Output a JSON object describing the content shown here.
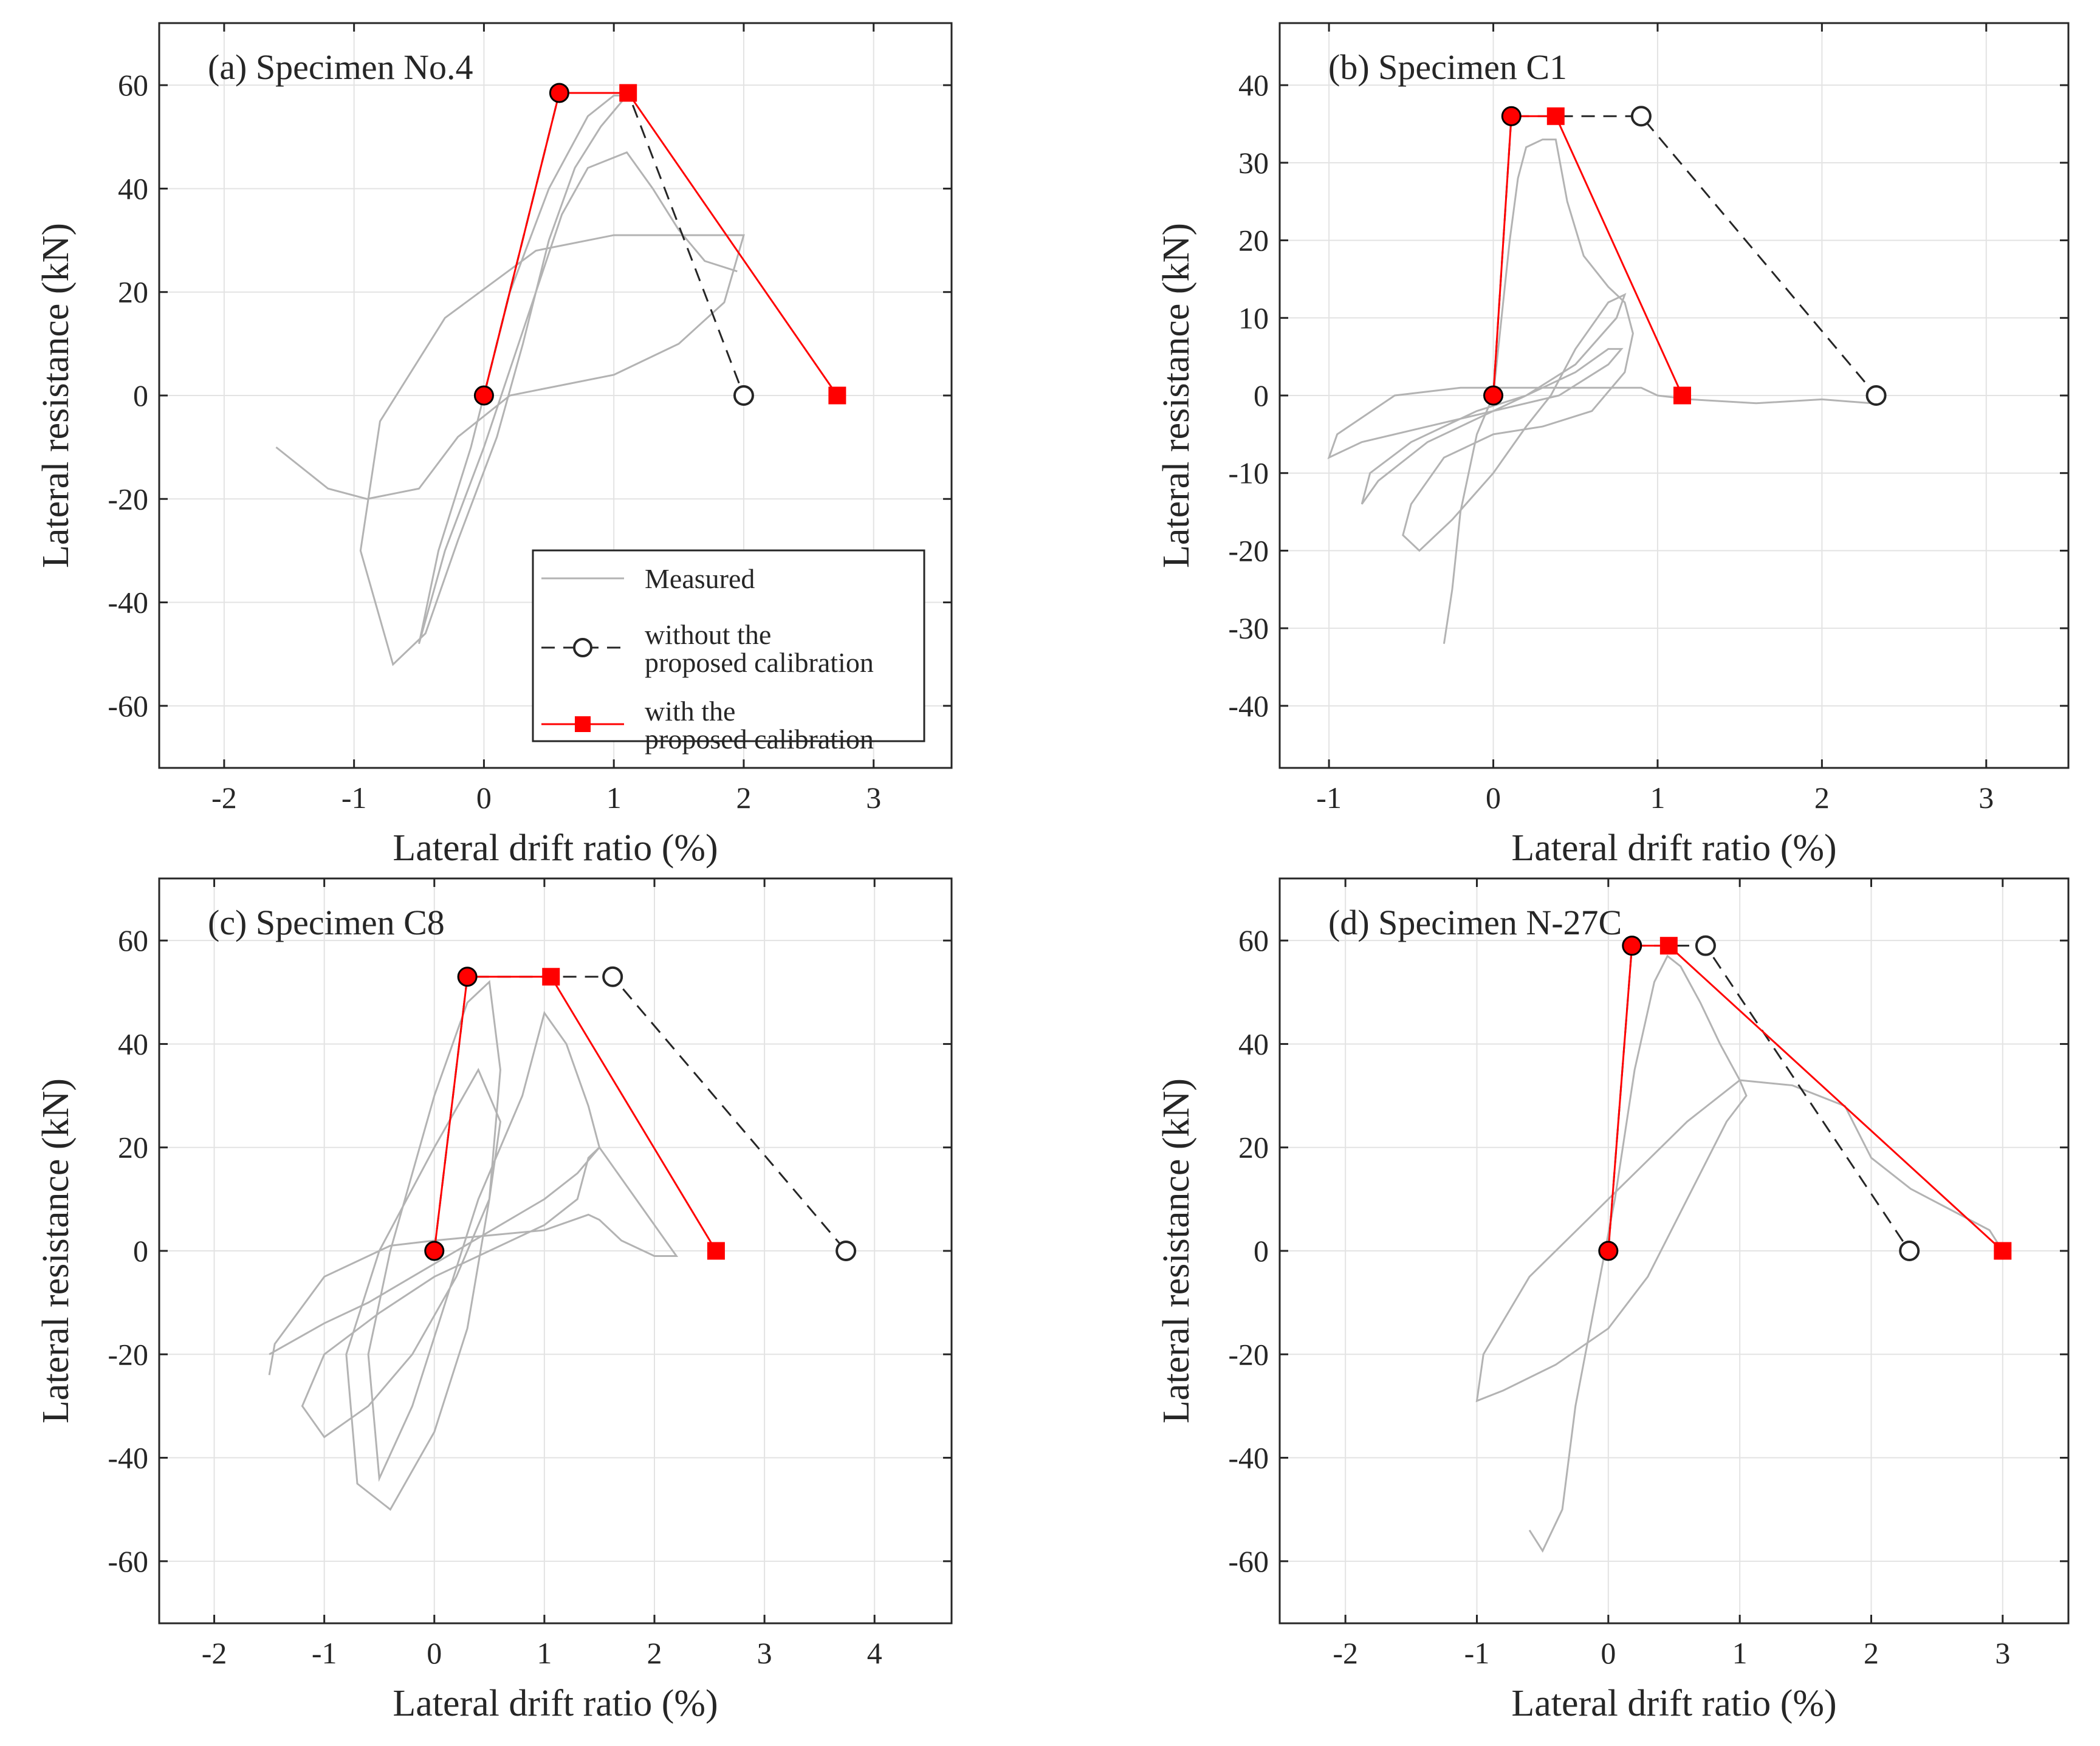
{
  "figure": {
    "legend": {
      "entries": [
        {
          "label_lines": [
            "Measured"
          ],
          "kind": "measured"
        },
        {
          "label_lines": [
            "without the",
            "proposed calibration"
          ],
          "kind": "without"
        },
        {
          "label_lines": [
            "with the",
            "proposed calibration"
          ],
          "kind": "with"
        }
      ]
    },
    "colors": {
      "measured": "#b3b3b3",
      "without": "#262626",
      "with": "#ff0000",
      "grid": "#e3e3e3",
      "axis": "#262626"
    }
  },
  "chart_data": [
    {
      "type": "line",
      "panel_label": "(a) Specimen No.4",
      "xlabel": "Lateral drift ratio (%)",
      "ylabel": "Lateral resistance (kN)",
      "xlim": [
        -2.5,
        3.6
      ],
      "ylim": [
        -72,
        72
      ],
      "xticks": [
        -2,
        -1,
        0,
        1,
        2,
        3
      ],
      "yticks": [
        -60,
        -40,
        -20,
        0,
        20,
        40,
        60
      ],
      "grid": true,
      "legend_position": "bottom-right",
      "series": [
        {
          "name": "Measured",
          "x": [
            -1.6,
            -1.2,
            -0.9,
            -0.5,
            -0.2,
            0.2,
            0.6,
            1.0,
            1.5,
            1.85,
            2.0,
            1.7,
            1.0,
            0.4,
            -0.3,
            -0.8,
            -0.95,
            -0.7,
            -0.45,
            -0.2,
            0.1,
            0.3,
            0.5,
            0.7,
            0.9,
            1.1,
            1.0,
            0.8,
            0.5,
            0.2,
            -0.1,
            -0.35,
            -0.5,
            -0.3,
            0.0,
            0.2,
            0.4,
            0.6,
            0.8,
            1.1,
            1.3,
            1.5,
            1.7,
            1.95
          ],
          "y": [
            -10,
            -18,
            -20,
            -18,
            -8,
            0,
            2,
            4,
            10,
            18,
            31,
            31,
            31,
            28,
            15,
            -5,
            -30,
            -52,
            -46,
            -28,
            -8,
            10,
            30,
            44,
            52,
            58,
            58,
            54,
            40,
            20,
            -10,
            -30,
            -48,
            -30,
            -10,
            5,
            20,
            35,
            44,
            47,
            40,
            32,
            26,
            24
          ]
        },
        {
          "name": "without the proposed calibration",
          "x": [
            0,
            0.58,
            1.11,
            2.0
          ],
          "y": [
            0,
            58.5,
            58.5,
            0
          ]
        },
        {
          "name": "with the proposed calibration",
          "x": [
            0,
            0.58,
            1.11,
            2.72
          ],
          "y": [
            0,
            58.5,
            58.5,
            0
          ]
        }
      ]
    },
    {
      "type": "line",
      "panel_label": "(b) Specimen C1",
      "xlabel": "Lateral drift ratio (%)",
      "ylabel": "Lateral resistance (kN)",
      "xlim": [
        -1.3,
        3.5
      ],
      "ylim": [
        -48,
        48
      ],
      "xticks": [
        -1,
        0,
        1,
        2,
        3
      ],
      "yticks": [
        -40,
        -30,
        -20,
        -10,
        0,
        10,
        20,
        30,
        40
      ],
      "grid": true,
      "legend_position": "none",
      "series": [
        {
          "name": "Measured",
          "x": [
            -0.3,
            -0.25,
            -0.2,
            -0.1,
            0.0,
            0.05,
            0.1,
            0.15,
            0.2,
            0.3,
            0.38,
            0.45,
            0.55,
            0.7,
            0.8,
            0.85,
            0.8,
            0.6,
            0.3,
            0.0,
            -0.3,
            -0.5,
            -0.55,
            -0.45,
            -0.25,
            0.0,
            0.2,
            0.35,
            0.5,
            0.7,
            0.8,
            0.75,
            0.5,
            0.2,
            -0.1,
            -0.4,
            -0.7,
            -0.8,
            -0.75,
            -0.5,
            -0.1,
            0.2,
            0.5,
            0.7,
            0.78,
            0.7,
            0.4,
            0.0,
            -0.4,
            -0.8,
            -1.0,
            -0.95,
            -0.6,
            -0.2,
            0.2,
            0.6,
            0.9,
            1.0,
            1.2,
            1.6,
            2.0,
            2.3
          ],
          "y": [
            -32,
            -25,
            -15,
            -5,
            0,
            10,
            20,
            28,
            32,
            33,
            33,
            25,
            18,
            14,
            12,
            8,
            3,
            -2,
            -4,
            -5,
            -8,
            -14,
            -18,
            -20,
            -16,
            -10,
            -4,
            0,
            6,
            12,
            13,
            10,
            4,
            0,
            -3,
            -6,
            -11,
            -14,
            -10,
            -6,
            -2,
            0,
            3,
            6,
            6,
            4,
            0,
            -2,
            -4,
            -6,
            -8,
            -5,
            0,
            1,
            1,
            1,
            1,
            0,
            -0.5,
            -1,
            -0.5,
            -1
          ]
        },
        {
          "name": "without the proposed calibration",
          "x": [
            0,
            0.11,
            0.38,
            0.9,
            2.33
          ],
          "y": [
            0,
            36,
            36,
            36,
            0
          ]
        },
        {
          "name": "with the proposed calibration",
          "x": [
            0,
            0.11,
            0.38,
            1.15
          ],
          "y": [
            0,
            36,
            36,
            0
          ]
        }
      ]
    },
    {
      "type": "line",
      "panel_label": "(c) Specimen C8",
      "xlabel": "Lateral drift ratio (%)",
      "ylabel": "Lateral resistance (kN)",
      "xlim": [
        -2.5,
        4.7
      ],
      "ylim": [
        -72,
        72
      ],
      "xticks": [
        -2,
        -1,
        0,
        1,
        2,
        3,
        4
      ],
      "yticks": [
        -60,
        -40,
        -20,
        0,
        20,
        40,
        60
      ],
      "grid": true,
      "legend_position": "none",
      "series": [
        {
          "name": "Measured",
          "x": [
            -1.5,
            -1.45,
            -1.0,
            -0.4,
            0.0,
            0.5,
            1.0,
            1.4,
            1.5,
            1.7,
            2.0,
            2.2,
            1.5,
            1.4,
            1.3,
            1.0,
            0.5,
            0.0,
            -0.5,
            -1.0,
            -1.2,
            -1.0,
            -0.6,
            -0.2,
            0.2,
            0.5,
            0.6,
            0.4,
            0.0,
            -0.5,
            -0.8,
            -0.7,
            -0.4,
            0.0,
            0.3,
            0.5,
            0.6,
            0.5,
            0.3,
            0.0,
            -0.4,
            -0.6,
            -0.5,
            -0.2,
            0.1,
            0.4,
            0.8,
            1.0,
            1.2,
            1.4,
            1.5,
            1.3,
            1.0,
            0.6,
            0.2,
            -0.2,
            -0.6,
            -1.0,
            -1.5
          ],
          "y": [
            -24,
            -18,
            -5,
            1,
            2,
            3,
            4,
            7,
            6,
            2,
            -1,
            -1,
            20,
            18,
            10,
            5,
            0,
            -5,
            -12,
            -20,
            -30,
            -36,
            -30,
            -20,
            -5,
            10,
            25,
            35,
            20,
            0,
            -20,
            -45,
            -50,
            -35,
            -15,
            10,
            35,
            52,
            48,
            30,
            0,
            -20,
            -44,
            -30,
            -10,
            10,
            30,
            46,
            40,
            28,
            20,
            15,
            10,
            5,
            0,
            -5,
            -10,
            -14,
            -20
          ]
        },
        {
          "name": "without the proposed calibration",
          "x": [
            0,
            0.3,
            1.06,
            1.62,
            3.74
          ],
          "y": [
            0,
            53,
            53,
            53,
            0
          ]
        },
        {
          "name": "with the proposed calibration",
          "x": [
            0,
            0.3,
            1.06,
            2.56
          ],
          "y": [
            0,
            53,
            53,
            0
          ]
        }
      ]
    },
    {
      "type": "line",
      "panel_label": "(d) Specimen N-27C",
      "xlabel": "Lateral drift ratio (%)",
      "ylabel": "Lateral resistance (kN)",
      "xlim": [
        -2.5,
        3.5
      ],
      "ylim": [
        -72,
        72
      ],
      "xticks": [
        -2,
        -1,
        0,
        1,
        2,
        3
      ],
      "yticks": [
        -60,
        -40,
        -20,
        0,
        20,
        40,
        60
      ],
      "grid": true,
      "legend_position": "none",
      "series": [
        {
          "name": "Measured",
          "x": [
            -0.6,
            -0.5,
            -0.35,
            -0.25,
            -0.1,
            0.05,
            0.2,
            0.35,
            0.45,
            0.55,
            0.7,
            0.85,
            1.0,
            1.05,
            0.9,
            0.6,
            0.3,
            0.0,
            -0.4,
            -0.8,
            -1.0,
            -0.95,
            -0.6,
            -0.2,
            0.2,
            0.6,
            1.0,
            1.4,
            1.8,
            2.0,
            2.3,
            2.6,
            2.9,
            3.0
          ],
          "y": [
            -54,
            -58,
            -50,
            -30,
            -10,
            10,
            35,
            52,
            57,
            55,
            48,
            40,
            33,
            30,
            25,
            10,
            -5,
            -15,
            -22,
            -27,
            -29,
            -20,
            -5,
            5,
            15,
            25,
            33,
            32,
            28,
            18,
            12,
            8,
            4,
            0
          ]
        },
        {
          "name": "without the proposed calibration",
          "x": [
            0,
            0.18,
            0.46,
            0.74,
            2.29
          ],
          "y": [
            0,
            59,
            59,
            59,
            0
          ]
        },
        {
          "name": "with the proposed calibration",
          "x": [
            0,
            0.18,
            0.46,
            3.0
          ],
          "y": [
            0,
            59,
            59,
            0
          ]
        }
      ]
    }
  ]
}
